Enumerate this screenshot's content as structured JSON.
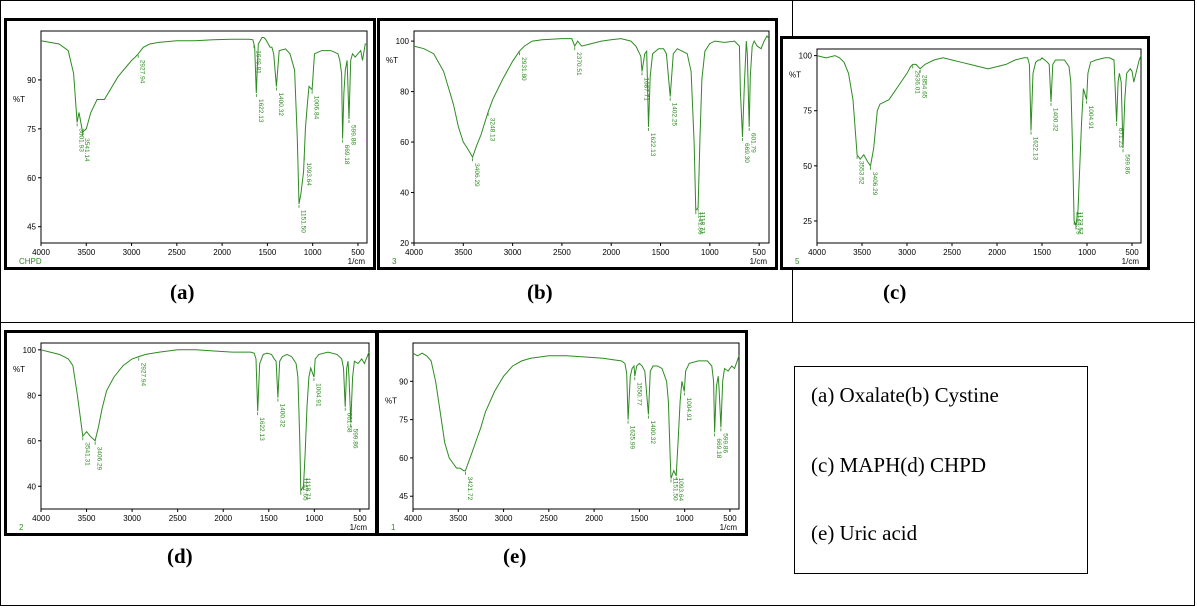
{
  "legend": {
    "line1": "(a) Oxalate(b) Cystine",
    "line2": "(c) MAPH(d) CHPD",
    "line3": "(e) Uric acid"
  },
  "colors": {
    "trace": "#2e8b22",
    "axis": "#000000"
  },
  "chart_data": [
    {
      "id": "a",
      "type": "line",
      "caption": "(a)",
      "sample": "CHPD",
      "ylabel": "%T",
      "xlabel": "1/cm",
      "xlim": [
        4000,
        400
      ],
      "ylim": [
        40,
        105
      ],
      "xticks": [
        4000,
        3500,
        3000,
        2500,
        2000,
        1500,
        1000,
        500
      ],
      "yticks": [
        45,
        60,
        75,
        90
      ],
      "series": [
        {
          "x": [
            4000,
            3900,
            3800,
            3700,
            3640,
            3601,
            3580,
            3541,
            3500,
            3450,
            3380,
            3300,
            3150,
            3000,
            2960,
            2927,
            2870,
            2800,
            2700,
            2500,
            2300,
            2100,
            1900,
            1800,
            1700,
            1660,
            1640,
            1622,
            1600,
            1560,
            1540,
            1520,
            1470,
            1450,
            1430,
            1400,
            1370,
            1300,
            1250,
            1200,
            1170,
            1151,
            1130,
            1100,
            1080,
            1060,
            1040,
            1006,
            980,
            900,
            800,
            760,
            720,
            700,
            680,
            669,
            655,
            640,
            620,
            599,
            580,
            560,
            530,
            500,
            470,
            450,
            420,
            400
          ],
          "y": [
            102,
            101.5,
            101,
            99,
            92,
            77,
            80,
            74,
            75,
            80,
            84,
            84,
            91,
            96,
            97,
            98,
            100,
            101,
            101.5,
            102,
            102,
            102.3,
            102.5,
            102.5,
            102.5,
            102.3,
            100,
            86,
            101,
            103,
            103,
            102.5,
            100,
            100,
            98,
            88,
            99,
            99.5,
            98,
            93,
            72,
            52,
            55,
            62,
            75,
            82,
            88,
            87,
            98,
            99,
            99,
            98.5,
            98,
            96,
            92,
            72,
            86,
            93,
            96,
            78,
            96,
            98,
            97,
            98,
            99,
            96,
            101,
            101
          ]
        }
      ],
      "peak_labels": [
        {
          "x": 3601,
          "text": "3601.93"
        },
        {
          "x": 3541,
          "text": "3541.14"
        },
        {
          "x": 2927,
          "text": "2927.94"
        },
        {
          "x": 1648,
          "text": "1649.81"
        },
        {
          "x": 1622,
          "text": "1622.13"
        },
        {
          "x": 1400,
          "text": "1400.32"
        },
        {
          "x": 1151,
          "text": "1151.50"
        },
        {
          "x": 1093,
          "text": "1093.64"
        },
        {
          "x": 1006,
          "text": "1006.84"
        },
        {
          "x": 669,
          "text": "669.18"
        },
        {
          "x": 599,
          "text": "599.88"
        }
      ]
    },
    {
      "id": "b",
      "type": "line",
      "caption": "(b)",
      "sample": "3",
      "ylabel": "%T",
      "xlabel": "1/cm",
      "xlim": [
        4000,
        400
      ],
      "ylim": [
        20,
        104
      ],
      "xticks": [
        4000,
        3500,
        3000,
        2500,
        2000,
        1500,
        1000,
        500
      ],
      "yticks": [
        20,
        40,
        60,
        80,
        100
      ],
      "series": [
        {
          "x": [
            4000,
            3900,
            3800,
            3700,
            3600,
            3550,
            3500,
            3450,
            3406,
            3370,
            3320,
            3280,
            3248,
            3200,
            3100,
            3000,
            2931,
            2880,
            2800,
            2700,
            2500,
            2400,
            2370,
            2340,
            2300,
            2200,
            2100,
            2000,
            1900,
            1800,
            1750,
            1700,
            1688,
            1660,
            1640,
            1622,
            1605,
            1580,
            1520,
            1470,
            1440,
            1402,
            1370,
            1330,
            1280,
            1230,
            1190,
            1160,
            1142,
            1119,
            1100,
            1080,
            1050,
            1000,
            950,
            850,
            750,
            700,
            690,
            669,
            650,
            630,
            620,
            601,
            590,
            570,
            550,
            520,
            480,
            450,
            420,
            400
          ],
          "y": [
            98,
            97,
            95,
            88,
            75,
            66,
            60,
            57,
            54,
            58,
            63,
            68,
            72,
            77,
            85,
            92,
            96,
            98,
            100,
            100.5,
            101,
            101,
            98,
            100,
            98,
            99,
            100,
            100.5,
            101,
            100,
            98,
            94,
            88,
            95,
            96,
            66,
            86,
            95,
            97,
            97,
            95,
            78,
            95,
            97,
            96,
            95,
            88,
            60,
            33,
            34,
            62,
            85,
            96,
            99,
            100,
            99.5,
            100,
            98,
            80,
            62,
            82,
            100,
            95,
            66,
            86,
            98,
            100,
            98,
            97,
            100,
            102,
            101
          ]
        }
      ],
      "peak_labels": [
        {
          "x": 3406,
          "text": "3406.29"
        },
        {
          "x": 3248,
          "text": "3248.13"
        },
        {
          "x": 2931,
          "text": "2931.80"
        },
        {
          "x": 2370,
          "text": "2370.51"
        },
        {
          "x": 1688,
          "text": "1687.71"
        },
        {
          "x": 1622,
          "text": "1622.13"
        },
        {
          "x": 1402,
          "text": "1402.25"
        },
        {
          "x": 1142,
          "text": "1141.86"
        },
        {
          "x": 1119,
          "text": "1118.71"
        },
        {
          "x": 669,
          "text": "669.30"
        },
        {
          "x": 601,
          "text": "601.79"
        }
      ]
    },
    {
      "id": "c",
      "type": "line",
      "caption": "(c)",
      "sample": "5",
      "ylabel": "%T",
      "xlabel": "1/cm",
      "xlim": [
        4000,
        400
      ],
      "ylim": [
        15,
        103
      ],
      "xticks": [
        4000,
        3500,
        3000,
        2500,
        2000,
        1500,
        1000,
        500
      ],
      "yticks": [
        25,
        50,
        75,
        100
      ],
      "series": [
        {
          "x": [
            4000,
            3900,
            3800,
            3750,
            3700,
            3650,
            3600,
            3555,
            3520,
            3480,
            3440,
            3406,
            3370,
            3330,
            3300,
            3200,
            3100,
            3000,
            2960,
            2936,
            2900,
            2854,
            2800,
            2700,
            2600,
            2500,
            2400,
            2300,
            2200,
            2100,
            2000,
            1900,
            1800,
            1700,
            1660,
            1640,
            1622,
            1600,
            1570,
            1540,
            1520,
            1500,
            1470,
            1440,
            1420,
            1400,
            1380,
            1350,
            1300,
            1250,
            1200,
            1180,
            1160,
            1143,
            1123,
            1100,
            1080,
            1060,
            1040,
            1004,
            990,
            960,
            900,
            800,
            750,
            700,
            671,
            655,
            640,
            620,
            600,
            580,
            560,
            520,
            500,
            480,
            450,
            420,
            400
          ],
          "y": [
            100,
            99,
            100,
            99,
            97,
            92,
            80,
            55,
            53,
            55,
            52,
            50,
            58,
            75,
            78,
            80,
            86,
            92,
            95,
            96,
            96,
            94,
            96,
            98,
            99,
            98,
            97,
            96,
            95,
            94,
            95,
            96,
            98,
            99,
            99,
            96,
            66,
            92,
            97,
            98,
            98,
            99,
            98,
            97,
            96,
            79,
            96,
            98,
            98,
            98,
            95,
            88,
            57,
            25,
            23,
            30,
            50,
            70,
            85,
            80,
            92,
            97,
            98,
            99,
            99,
            98,
            70,
            88,
            92,
            88,
            58,
            80,
            92,
            94,
            93,
            88,
            93,
            98,
            100
          ]
        }
      ],
      "peak_labels": [
        {
          "x": 3555,
          "text": "3553.52"
        },
        {
          "x": 3406,
          "text": "3406.29"
        },
        {
          "x": 2936,
          "text": "2936.01"
        },
        {
          "x": 2854,
          "text": "2854.65"
        },
        {
          "x": 1622,
          "text": "1622.13"
        },
        {
          "x": 1400,
          "text": "1400.32"
        },
        {
          "x": 1143,
          "text": "1143.79"
        },
        {
          "x": 1123,
          "text": "1122.57"
        },
        {
          "x": 1004,
          "text": "1004.91"
        },
        {
          "x": 671,
          "text": "671.23"
        },
        {
          "x": 600,
          "text": "599.86"
        }
      ]
    },
    {
      "id": "d",
      "type": "line",
      "caption": "(d)",
      "sample": "2",
      "ylabel": "%T",
      "xlabel": "1/cm",
      "xlim": [
        4000,
        400
      ],
      "ylim": [
        30,
        103
      ],
      "xticks": [
        4000,
        3500,
        3000,
        2500,
        2000,
        1500,
        1000,
        500
      ],
      "yticks": [
        40,
        60,
        80,
        100
      ],
      "series": [
        {
          "x": [
            4000,
            3900,
            3800,
            3750,
            3700,
            3650,
            3600,
            3541,
            3500,
            3460,
            3406,
            3370,
            3330,
            3280,
            3200,
            3100,
            3000,
            2927,
            2850,
            2700,
            2500,
            2300,
            2100,
            1900,
            1800,
            1700,
            1660,
            1640,
            1622,
            1600,
            1560,
            1520,
            1470,
            1440,
            1420,
            1400,
            1380,
            1350,
            1300,
            1250,
            1200,
            1180,
            1160,
            1148,
            1119,
            1100,
            1080,
            1060,
            1040,
            1004,
            990,
            950,
            850,
            750,
            700,
            680,
            661,
            645,
            630,
            620,
            600,
            580,
            560,
            520,
            480,
            450,
            420,
            400
          ],
          "y": [
            100,
            99,
            98,
            97,
            96,
            93,
            80,
            62,
            64,
            62,
            60,
            66,
            74,
            82,
            88,
            93,
            96,
            97,
            98,
            99,
            100,
            100,
            99.5,
            99,
            99,
            99,
            98.5,
            96,
            73,
            94,
            98,
            98.5,
            98,
            96,
            95,
            79,
            95,
            97,
            98,
            97,
            94,
            88,
            60,
            38,
            40,
            55,
            75,
            88,
            92,
            88,
            96,
            98,
            99,
            98,
            96,
            92,
            75,
            92,
            95,
            88,
            68,
            88,
            95,
            94,
            96,
            94,
            97,
            99
          ]
        }
      ],
      "peak_labels": [
        {
          "x": 3541,
          "text": "3541.31"
        },
        {
          "x": 3406,
          "text": "3406.29"
        },
        {
          "x": 2927,
          "text": "2927.94"
        },
        {
          "x": 1622,
          "text": "1622.13"
        },
        {
          "x": 1400,
          "text": "1400.32"
        },
        {
          "x": 1148,
          "text": "1147.65"
        },
        {
          "x": 1119,
          "text": "1118.71"
        },
        {
          "x": 1004,
          "text": "1004.91"
        },
        {
          "x": 661,
          "text": "661.58"
        },
        {
          "x": 600,
          "text": "599.86"
        }
      ]
    },
    {
      "id": "e",
      "type": "line",
      "caption": "(e)",
      "sample": "1",
      "ylabel": "%T",
      "xlabel": "1/cm",
      "xlim": [
        4000,
        400
      ],
      "ylim": [
        40,
        105
      ],
      "xticks": [
        4000,
        3500,
        3000,
        2500,
        2000,
        1500,
        1000,
        500
      ],
      "yticks": [
        45,
        60,
        75,
        90
      ],
      "series": [
        {
          "x": [
            4000,
            3950,
            3900,
            3850,
            3800,
            3750,
            3700,
            3650,
            3600,
            3560,
            3520,
            3480,
            3440,
            3421,
            3390,
            3350,
            3300,
            3250,
            3200,
            3100,
            3000,
            2900,
            2800,
            2700,
            2500,
            2300,
            2100,
            1900,
            1800,
            1700,
            1660,
            1640,
            1625,
            1600,
            1580,
            1560,
            1551,
            1530,
            1500,
            1470,
            1440,
            1400,
            1380,
            1350,
            1300,
            1250,
            1200,
            1180,
            1160,
            1151,
            1120,
            1093,
            1070,
            1050,
            1030,
            1004,
            990,
            950,
            850,
            750,
            700,
            680,
            669,
            650,
            630,
            620,
            600,
            580,
            560,
            520,
            480,
            450,
            420,
            400
          ],
          "y": [
            101,
            100,
            101,
            100,
            98,
            90,
            78,
            66,
            60,
            58,
            56,
            56,
            55,
            55,
            58,
            62,
            67,
            72,
            78,
            86,
            92,
            96,
            98,
            99,
            100,
            100,
            99.5,
            99,
            98.5,
            98,
            97,
            93,
            75,
            92,
            95,
            96,
            92,
            96,
            97,
            96,
            94,
            77,
            94,
            96,
            96,
            95,
            90,
            82,
            60,
            52,
            55,
            53,
            68,
            82,
            90,
            86,
            94,
            97,
            98,
            98,
            96,
            90,
            70,
            88,
            92,
            87,
            72,
            90,
            95,
            94,
            96,
            95,
            98,
            100
          ]
        }
      ],
      "peak_labels": [
        {
          "x": 3421,
          "text": "3421.72"
        },
        {
          "x": 1625,
          "text": "1625.99"
        },
        {
          "x": 1551,
          "text": "1550.77"
        },
        {
          "x": 1400,
          "text": "1400.32"
        },
        {
          "x": 1151,
          "text": "1151.50"
        },
        {
          "x": 1093,
          "text": "1093.64"
        },
        {
          "x": 1004,
          "text": "1004.91"
        },
        {
          "x": 669,
          "text": "669.18"
        },
        {
          "x": 600,
          "text": "599.86"
        }
      ]
    }
  ]
}
